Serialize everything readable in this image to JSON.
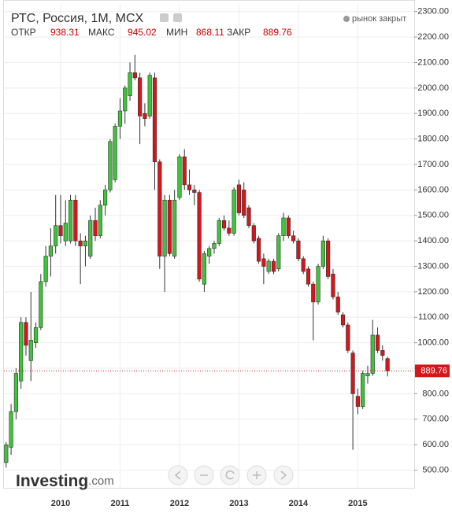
{
  "chart_data": {
    "type": "candlestick",
    "title": "РТС, Россия, 1M, MCX",
    "status": "рынок закрыт",
    "header_labels": {
      "open": "ОТКР",
      "high": "МАКС",
      "low": "МИН",
      "close": "ЗАКР"
    },
    "logo": "Investing",
    "logo_suffix": ".com",
    "categories": [
      null,
      null,
      null,
      null,
      null,
      null,
      null,
      null,
      null,
      null,
      null,
      "2010",
      null,
      null,
      null,
      null,
      null,
      null,
      null,
      null,
      null,
      null,
      null,
      "2011",
      null,
      null,
      null,
      null,
      null,
      null,
      null,
      null,
      null,
      null,
      null,
      "2012",
      null,
      null,
      null,
      null,
      null,
      null,
      null,
      null,
      null,
      null,
      null,
      "2013",
      null,
      null,
      null,
      null,
      null,
      null,
      null,
      null,
      null,
      null,
      null,
      "2014",
      null,
      null,
      null,
      null,
      null,
      null,
      null,
      null,
      null,
      null,
      null,
      "2015",
      null,
      null,
      null,
      null,
      null,
      null
    ],
    "open": [
      530,
      590,
      730,
      850,
      1080,
      930,
      1000,
      1060,
      1240,
      1340,
      1380,
      1460,
      1400,
      1400,
      1560,
      1400,
      1380,
      1340,
      1480,
      1420,
      1540,
      1600,
      1640,
      1850,
      1910,
      1970,
      2060,
      2040,
      1900,
      1890,
      2040,
      1710,
      1340,
      1560,
      1340,
      1570,
      1730,
      1620,
      1600,
      1590,
      1230,
      1340,
      1370,
      1390,
      1480,
      1450,
      1430,
      1620,
      1600,
      1530,
      1460,
      1410,
      1330,
      1280,
      1320,
      1290,
      1420,
      1490,
      1420,
      1400,
      1330,
      1290,
      1230,
      1160,
      1300,
      1400,
      1270,
      1180,
      1110,
      1070,
      960,
      790,
      750,
      870,
      880,
      1030,
      970,
      938.31
    ],
    "high": [
      610,
      760,
      900,
      1100,
      1100,
      1200,
      1080,
      1270,
      1380,
      1450,
      1580,
      1580,
      1560,
      1580,
      1580,
      1430,
      1420,
      1500,
      1530,
      1560,
      1620,
      1800,
      1860,
      1960,
      2010,
      2100,
      2130,
      2060,
      1940,
      2060,
      2060,
      1720,
      1580,
      1580,
      1600,
      1740,
      1760,
      1680,
      1620,
      1600,
      1360,
      1380,
      1400,
      1490,
      1500,
      1480,
      1610,
      1640,
      1630,
      1540,
      1470,
      1420,
      1350,
      1330,
      1330,
      1430,
      1510,
      1500,
      1440,
      1410,
      1340,
      1300,
      1240,
      1310,
      1420,
      1410,
      1290,
      1200,
      1120,
      1080,
      970,
      820,
      890,
      910,
      1090,
      1060,
      990,
      945.02
    ],
    "low": [
      510,
      560,
      700,
      820,
      950,
      850,
      980,
      1050,
      1220,
      1260,
      1350,
      1390,
      1380,
      1390,
      1380,
      1230,
      1300,
      1330,
      1400,
      1410,
      1500,
      1590,
      1630,
      1800,
      1860,
      1950,
      2030,
      1780,
      1850,
      1880,
      1600,
      1290,
      1200,
      1340,
      1330,
      1560,
      1600,
      1580,
      1540,
      1240,
      1200,
      1310,
      1350,
      1380,
      1440,
      1420,
      1420,
      1500,
      1490,
      1450,
      1390,
      1310,
      1230,
      1270,
      1270,
      1280,
      1400,
      1410,
      1390,
      1320,
      1270,
      1220,
      1010,
      1150,
      1290,
      1250,
      1170,
      1110,
      1060,
      960,
      580,
      720,
      740,
      840,
      870,
      960,
      930,
      868.11
    ],
    "close": [
      600,
      730,
      880,
      1080,
      990,
      1010,
      1060,
      1240,
      1340,
      1380,
      1460,
      1420,
      1470,
      1560,
      1400,
      1380,
      1400,
      1480,
      1420,
      1540,
      1600,
      1790,
      1850,
      1910,
      2000,
      2060,
      2040,
      1890,
      1880,
      2050,
      1710,
      1340,
      1560,
      1350,
      1560,
      1730,
      1620,
      1600,
      1590,
      1250,
      1350,
      1370,
      1390,
      1480,
      1450,
      1430,
      1600,
      1510,
      1500,
      1460,
      1400,
      1320,
      1300,
      1320,
      1280,
      1420,
      1490,
      1420,
      1400,
      1330,
      1280,
      1230,
      1160,
      1300,
      1400,
      1260,
      1180,
      1120,
      1070,
      970,
      800,
      750,
      880,
      880,
      1030,
      970,
      950,
      889.76
    ],
    "up_color": "#3fc33a",
    "down_color": "#d3171c",
    "ylim": [
      440,
      2330
    ],
    "yticks": [
      {
        "value": 500,
        "label": "500.00"
      },
      {
        "value": 600,
        "label": "600.00"
      },
      {
        "value": 700,
        "label": "700.00"
      },
      {
        "value": 800,
        "label": "800.00"
      },
      {
        "value": 900,
        "label": "900.00"
      },
      {
        "value": 1000,
        "label": "1000.00"
      },
      {
        "value": 1100,
        "label": "1100.00"
      },
      {
        "value": 1200,
        "label": "1200.00"
      },
      {
        "value": 1300,
        "label": "1300.00"
      },
      {
        "value": 1400,
        "label": "1400.00"
      },
      {
        "value": 1500,
        "label": "1500.00"
      },
      {
        "value": 1600,
        "label": "1600.00"
      },
      {
        "value": 1700,
        "label": "1700.00"
      },
      {
        "value": 1800,
        "label": "1800.00"
      },
      {
        "value": 1900,
        "label": "1900.00"
      },
      {
        "value": 2000,
        "label": "2000.00"
      },
      {
        "value": 2100,
        "label": "2100.00"
      },
      {
        "value": 2200,
        "label": "2200.00"
      },
      {
        "value": 2300,
        "label": "2300.00"
      }
    ],
    "grid": true
  }
}
